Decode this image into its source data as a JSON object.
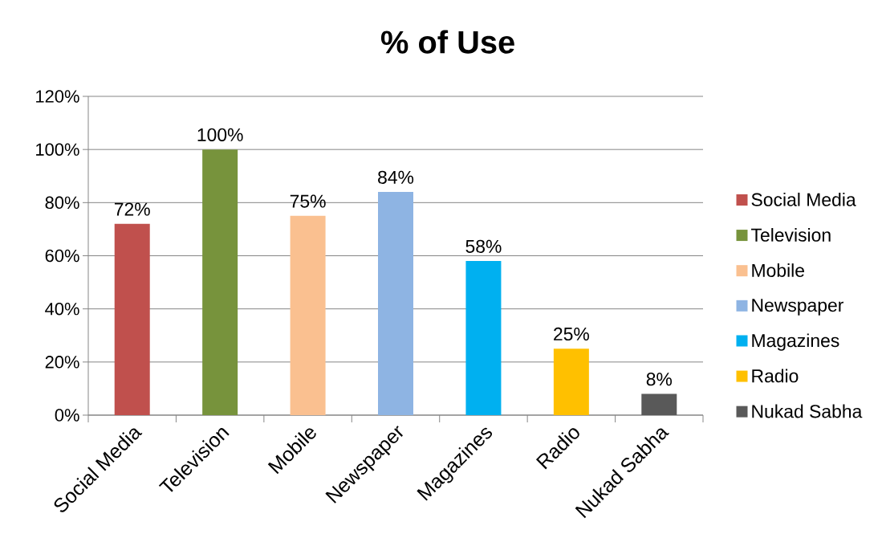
{
  "chart_data": {
    "type": "bar",
    "title": "% of Use",
    "categories": [
      "Social Media",
      "Television",
      "Mobile",
      "Newspaper",
      "Magazines",
      "Radio",
      "Nukad Sabha"
    ],
    "series": [
      {
        "name": "Social Media",
        "color": "#c0504d",
        "values": [
          72,
          null,
          null,
          null,
          null,
          null,
          null
        ],
        "value_labels": [
          "72%",
          null,
          null,
          null,
          null,
          null,
          null
        ]
      },
      {
        "name": "Television",
        "color": "#77933c",
        "values": [
          null,
          100,
          null,
          null,
          null,
          null,
          null
        ],
        "value_labels": [
          null,
          "100%",
          null,
          null,
          null,
          null,
          null
        ]
      },
      {
        "name": "Mobile",
        "color": "#fac090",
        "values": [
          null,
          null,
          75,
          null,
          null,
          null,
          null
        ],
        "value_labels": [
          null,
          null,
          "75%",
          null,
          null,
          null,
          null
        ]
      },
      {
        "name": "Newspaper",
        "color": "#8eb4e3",
        "values": [
          null,
          null,
          null,
          84,
          null,
          null,
          null
        ],
        "value_labels": [
          null,
          null,
          null,
          "84%",
          null,
          null,
          null
        ]
      },
      {
        "name": "Magazines",
        "color": "#00b0f0",
        "values": [
          null,
          null,
          null,
          null,
          58,
          null,
          null
        ],
        "value_labels": [
          null,
          null,
          null,
          null,
          "58%",
          null,
          null
        ]
      },
      {
        "name": "Radio",
        "color": "#ffc000",
        "values": [
          null,
          null,
          null,
          null,
          null,
          25,
          null
        ],
        "value_labels": [
          null,
          null,
          null,
          null,
          null,
          "25%",
          null
        ]
      },
      {
        "name": "Nukad Sabha",
        "color": "#595959",
        "values": [
          null,
          null,
          null,
          null,
          null,
          null,
          8
        ],
        "value_labels": [
          null,
          null,
          null,
          null,
          null,
          null,
          "8%"
        ]
      }
    ],
    "ylim": [
      0,
      120
    ],
    "yticks": [
      {
        "value": 0,
        "label": "0%"
      },
      {
        "value": 20,
        "label": "20%"
      },
      {
        "value": 40,
        "label": "40%"
      },
      {
        "value": 60,
        "label": "60%"
      },
      {
        "value": 80,
        "label": "80%"
      },
      {
        "value": 100,
        "label": "100%"
      },
      {
        "value": 120,
        "label": "120%"
      }
    ],
    "grid": "y",
    "legend": "right"
  }
}
